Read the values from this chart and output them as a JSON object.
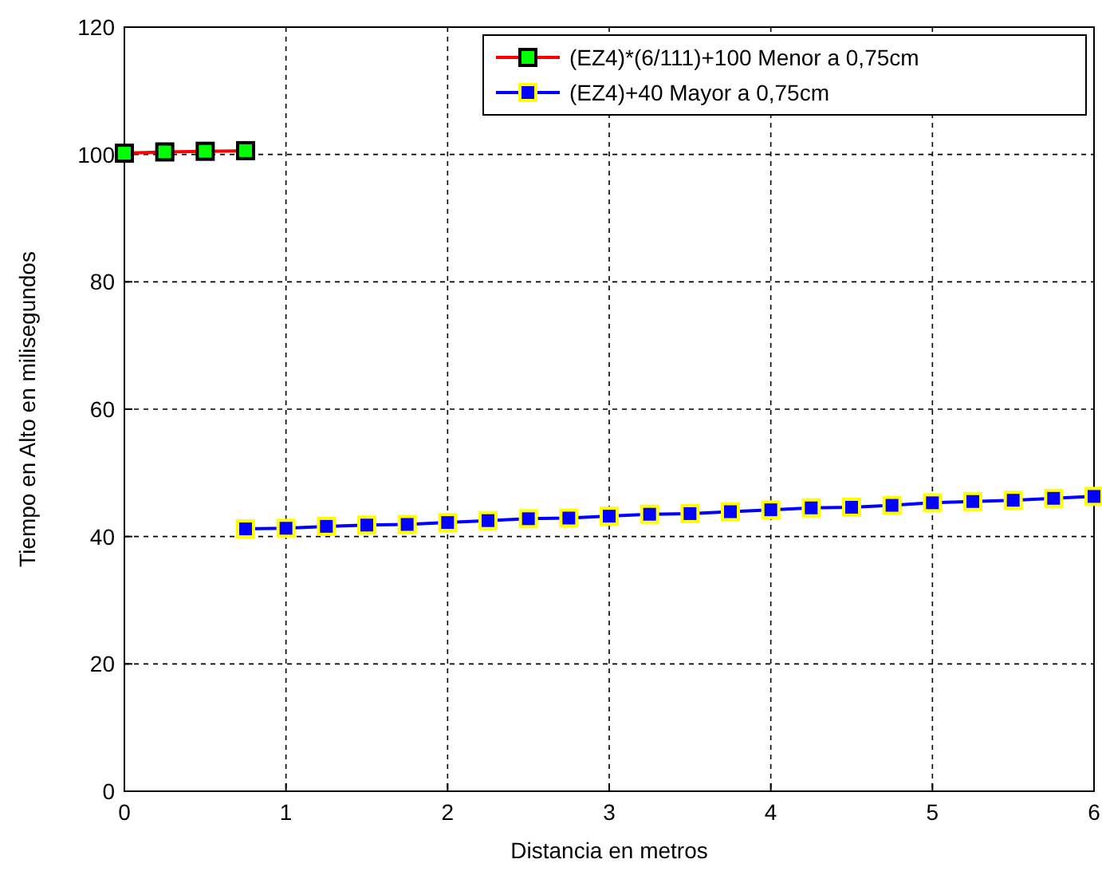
{
  "chart_data": {
    "type": "line",
    "xlabel": "Distancia en metros",
    "ylabel": "Tiempo en Alto en milisegundos",
    "xlim": [
      0,
      6
    ],
    "ylim": [
      0,
      120
    ],
    "xticks": [
      0,
      1,
      2,
      3,
      4,
      5,
      6
    ],
    "yticks": [
      0,
      20,
      40,
      60,
      80,
      100,
      120
    ],
    "grid": true,
    "legend": "top right",
    "marker": "square",
    "series": [
      {
        "name": "(EZ4)*(6/111)+100 Menor a 0,75cm",
        "color": "#ff0000",
        "x": [
          0,
          0.25,
          0.5,
          0.75
        ],
        "values": [
          100.2,
          100.4,
          100.5,
          100.6
        ]
      },
      {
        "name": "(EZ4)+40 Mayor a 0,75cm",
        "color": "#0000ff",
        "x": [
          0.75,
          1,
          1.25,
          1.5,
          1.75,
          2,
          2.25,
          2.5,
          2.75,
          3,
          3.25,
          3.5,
          3.75,
          4,
          4.25,
          4.5,
          4.75,
          5,
          5.25,
          5.5,
          5.75,
          6
        ],
        "values": [
          41.2,
          41.3,
          41.6,
          41.8,
          41.9,
          42.2,
          42.5,
          42.8,
          42.9,
          43.2,
          43.5,
          43.6,
          43.9,
          44.2,
          44.5,
          44.6,
          44.9,
          45.3,
          45.5,
          45.7,
          46,
          46.3
        ]
      }
    ]
  }
}
